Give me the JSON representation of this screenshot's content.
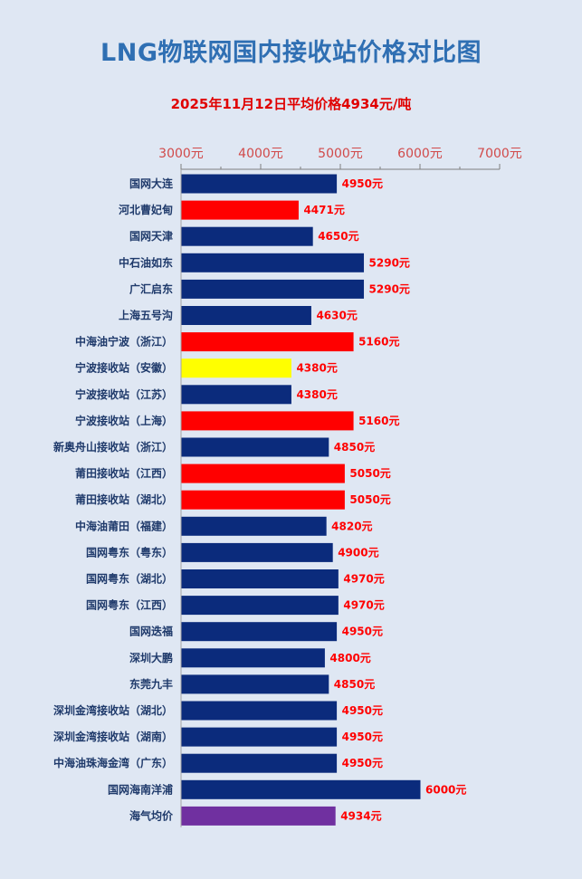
{
  "title": "LNG物联网国内接收站价格对比图",
  "subtitle": "2025年11月12日平均价格4934元/吨",
  "chart_data": {
    "type": "bar",
    "orientation": "horizontal",
    "title": "LNG物联网国内接收站价格对比图",
    "subtitle": "2025年11月12日平均价格4934元/吨",
    "xlim": [
      3000,
      7000
    ],
    "axis_position": "top",
    "ticks": [
      {
        "value": 3000,
        "label": "3000元"
      },
      {
        "value": 4000,
        "label": "4000元"
      },
      {
        "value": 5000,
        "label": "5000元"
      },
      {
        "value": 6000,
        "label": "6000元"
      },
      {
        "value": 7000,
        "label": "7000元"
      }
    ],
    "bars": [
      {
        "category": "国网大连",
        "value": 4950,
        "label": "4950元",
        "color": "#0b2b7c"
      },
      {
        "category": "河北曹妃甸",
        "value": 4471,
        "label": "4471元",
        "color": "#ff0000"
      },
      {
        "category": "国网天津",
        "value": 4650,
        "label": "4650元",
        "color": "#0b2b7c"
      },
      {
        "category": "中石油如东",
        "value": 5290,
        "label": "5290元",
        "color": "#0b2b7c"
      },
      {
        "category": "广汇启东",
        "value": 5290,
        "label": "5290元",
        "color": "#0b2b7c"
      },
      {
        "category": "上海五号沟",
        "value": 4630,
        "label": "4630元",
        "color": "#0b2b7c"
      },
      {
        "category": "中海油宁波（浙江）",
        "value": 5160,
        "label": "5160元",
        "color": "#ff0000"
      },
      {
        "category": "宁波接收站（安徽）",
        "value": 4380,
        "label": "4380元",
        "color": "#ffff00"
      },
      {
        "category": "宁波接收站（江苏）",
        "value": 4380,
        "label": "4380元",
        "color": "#0b2b7c"
      },
      {
        "category": "宁波接收站（上海）",
        "value": 5160,
        "label": "5160元",
        "color": "#ff0000"
      },
      {
        "category": "新奥舟山接收站（浙江）",
        "value": 4850,
        "label": "4850元",
        "color": "#0b2b7c"
      },
      {
        "category": "莆田接收站（江西）",
        "value": 5050,
        "label": "5050元",
        "color": "#ff0000"
      },
      {
        "category": "莆田接收站（湖北）",
        "value": 5050,
        "label": "5050元",
        "color": "#ff0000"
      },
      {
        "category": "中海油莆田（福建）",
        "value": 4820,
        "label": "4820元",
        "color": "#0b2b7c"
      },
      {
        "category": "国网粤东（粤东）",
        "value": 4900,
        "label": "4900元",
        "color": "#0b2b7c"
      },
      {
        "category": "国网粤东（湖北）",
        "value": 4970,
        "label": "4970元",
        "color": "#0b2b7c"
      },
      {
        "category": "国网粤东（江西）",
        "value": 4970,
        "label": "4970元",
        "color": "#0b2b7c"
      },
      {
        "category": "国网迭福",
        "value": 4950,
        "label": "4950元",
        "color": "#0b2b7c"
      },
      {
        "category": "深圳大鹏",
        "value": 4800,
        "label": "4800元",
        "color": "#0b2b7c"
      },
      {
        "category": "东莞九丰",
        "value": 4850,
        "label": "4850元",
        "color": "#0b2b7c"
      },
      {
        "category": "深圳金湾接收站（湖北）",
        "value": 4950,
        "label": "4950元",
        "color": "#0b2b7c"
      },
      {
        "category": "深圳金湾接收站（湖南）",
        "value": 4950,
        "label": "4950元",
        "color": "#0b2b7c"
      },
      {
        "category": "中海油珠海金湾（广东）",
        "value": 4950,
        "label": "4950元",
        "color": "#0b2b7c"
      },
      {
        "category": "国网海南洋浦",
        "value": 6000,
        "label": "6000元",
        "color": "#0b2b7c"
      },
      {
        "category": "海气均价",
        "value": 4934,
        "label": "4934元",
        "color": "#7030a0"
      }
    ],
    "grid": false,
    "legend": "none"
  }
}
